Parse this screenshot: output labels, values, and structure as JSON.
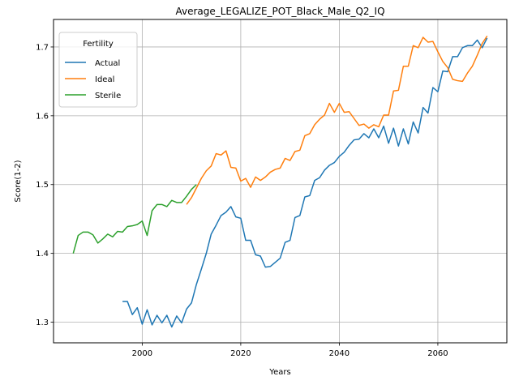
{
  "chart_data": {
    "type": "line",
    "title": "Average_LEGALIZE_POT_Black_Male_Q2_IQ",
    "xlabel": "Years",
    "ylabel": "Score(1-2)",
    "xlim": [
      1982,
      2074
    ],
    "ylim": [
      1.27,
      1.74
    ],
    "xticks": [
      2000,
      2020,
      2040,
      2060
    ],
    "yticks": [
      1.3,
      1.4,
      1.5,
      1.6,
      1.7
    ],
    "grid": true,
    "legend": {
      "title": "Fertility",
      "placement": "top-left"
    },
    "series": [
      {
        "name": "Actual",
        "color": "#1f77b4",
        "points": [
          [
            1996,
            1.33
          ],
          [
            1997,
            1.33
          ],
          [
            1998,
            1.311
          ],
          [
            1999,
            1.321
          ],
          [
            2000,
            1.297
          ],
          [
            2001,
            1.318
          ],
          [
            2002,
            1.296
          ],
          [
            2003,
            1.31
          ],
          [
            2004,
            1.299
          ],
          [
            2005,
            1.31
          ],
          [
            2006,
            1.293
          ],
          [
            2007,
            1.309
          ],
          [
            2008,
            1.299
          ],
          [
            2009,
            1.319
          ],
          [
            2010,
            1.328
          ],
          [
            2011,
            1.355
          ],
          [
            2012,
            1.377
          ],
          [
            2013,
            1.4
          ],
          [
            2014,
            1.428
          ],
          [
            2015,
            1.441
          ],
          [
            2016,
            1.455
          ],
          [
            2017,
            1.46
          ],
          [
            2018,
            1.468
          ],
          [
            2019,
            1.453
          ],
          [
            2020,
            1.451
          ],
          [
            2021,
            1.419
          ],
          [
            2022,
            1.419
          ],
          [
            2023,
            1.398
          ],
          [
            2024,
            1.396
          ],
          [
            2025,
            1.38
          ],
          [
            2026,
            1.381
          ],
          [
            2027,
            1.387
          ],
          [
            2028,
            1.393
          ],
          [
            2029,
            1.416
          ],
          [
            2030,
            1.419
          ],
          [
            2031,
            1.452
          ],
          [
            2032,
            1.455
          ],
          [
            2033,
            1.482
          ],
          [
            2034,
            1.484
          ],
          [
            2035,
            1.506
          ],
          [
            2036,
            1.51
          ],
          [
            2037,
            1.521
          ],
          [
            2038,
            1.528
          ],
          [
            2039,
            1.532
          ],
          [
            2040,
            1.541
          ],
          [
            2041,
            1.547
          ],
          [
            2042,
            1.557
          ],
          [
            2043,
            1.565
          ],
          [
            2044,
            1.566
          ],
          [
            2045,
            1.574
          ],
          [
            2046,
            1.568
          ],
          [
            2047,
            1.581
          ],
          [
            2048,
            1.568
          ],
          [
            2049,
            1.585
          ],
          [
            2050,
            1.56
          ],
          [
            2051,
            1.582
          ],
          [
            2052,
            1.556
          ],
          [
            2053,
            1.581
          ],
          [
            2054,
            1.559
          ],
          [
            2055,
            1.591
          ],
          [
            2056,
            1.575
          ],
          [
            2057,
            1.612
          ],
          [
            2058,
            1.604
          ],
          [
            2059,
            1.641
          ],
          [
            2060,
            1.635
          ],
          [
            2061,
            1.665
          ],
          [
            2062,
            1.664
          ],
          [
            2063,
            1.686
          ],
          [
            2064,
            1.686
          ],
          [
            2065,
            1.699
          ],
          [
            2066,
            1.702
          ],
          [
            2067,
            1.702
          ],
          [
            2068,
            1.71
          ],
          [
            2069,
            1.699
          ],
          [
            2070,
            1.713
          ]
        ]
      },
      {
        "name": "Ideal",
        "color": "#ff7f0e",
        "points": [
          [
            2009,
            1.471
          ],
          [
            2010,
            1.481
          ],
          [
            2011,
            1.495
          ],
          [
            2012,
            1.509
          ],
          [
            2013,
            1.52
          ],
          [
            2014,
            1.527
          ],
          [
            2015,
            1.545
          ],
          [
            2016,
            1.543
          ],
          [
            2017,
            1.549
          ],
          [
            2018,
            1.525
          ],
          [
            2019,
            1.524
          ],
          [
            2020,
            1.505
          ],
          [
            2021,
            1.509
          ],
          [
            2022,
            1.496
          ],
          [
            2023,
            1.511
          ],
          [
            2024,
            1.506
          ],
          [
            2025,
            1.511
          ],
          [
            2026,
            1.518
          ],
          [
            2027,
            1.522
          ],
          [
            2028,
            1.524
          ],
          [
            2029,
            1.538
          ],
          [
            2030,
            1.535
          ],
          [
            2031,
            1.548
          ],
          [
            2032,
            1.55
          ],
          [
            2033,
            1.571
          ],
          [
            2034,
            1.574
          ],
          [
            2035,
            1.587
          ],
          [
            2036,
            1.595
          ],
          [
            2037,
            1.601
          ],
          [
            2038,
            1.618
          ],
          [
            2039,
            1.605
          ],
          [
            2040,
            1.618
          ],
          [
            2041,
            1.605
          ],
          [
            2042,
            1.606
          ],
          [
            2043,
            1.596
          ],
          [
            2044,
            1.586
          ],
          [
            2045,
            1.588
          ],
          [
            2046,
            1.582
          ],
          [
            2047,
            1.587
          ],
          [
            2048,
            1.584
          ],
          [
            2049,
            1.601
          ],
          [
            2050,
            1.601
          ],
          [
            2051,
            1.636
          ],
          [
            2052,
            1.637
          ],
          [
            2053,
            1.672
          ],
          [
            2054,
            1.672
          ],
          [
            2055,
            1.702
          ],
          [
            2056,
            1.699
          ],
          [
            2057,
            1.714
          ],
          [
            2058,
            1.707
          ],
          [
            2059,
            1.708
          ],
          [
            2060,
            1.693
          ],
          [
            2061,
            1.679
          ],
          [
            2062,
            1.67
          ],
          [
            2063,
            1.653
          ],
          [
            2064,
            1.651
          ],
          [
            2065,
            1.65
          ],
          [
            2066,
            1.662
          ],
          [
            2067,
            1.672
          ],
          [
            2068,
            1.688
          ],
          [
            2069,
            1.705
          ],
          [
            2070,
            1.716
          ]
        ]
      },
      {
        "name": "Sterile",
        "color": "#2ca02c",
        "points": [
          [
            1986,
            1.4
          ],
          [
            1987,
            1.426
          ],
          [
            1988,
            1.431
          ],
          [
            1989,
            1.431
          ],
          [
            1990,
            1.427
          ],
          [
            1991,
            1.415
          ],
          [
            1992,
            1.421
          ],
          [
            1993,
            1.428
          ],
          [
            1994,
            1.424
          ],
          [
            1995,
            1.432
          ],
          [
            1996,
            1.431
          ],
          [
            1997,
            1.439
          ],
          [
            1998,
            1.44
          ],
          [
            1999,
            1.442
          ],
          [
            2000,
            1.447
          ],
          [
            2001,
            1.426
          ],
          [
            2002,
            1.462
          ],
          [
            2003,
            1.471
          ],
          [
            2004,
            1.471
          ],
          [
            2005,
            1.468
          ],
          [
            2006,
            1.477
          ],
          [
            2007,
            1.474
          ],
          [
            2008,
            1.474
          ],
          [
            2009,
            1.483
          ],
          [
            2010,
            1.493
          ],
          [
            2011,
            1.5
          ]
        ]
      }
    ]
  }
}
